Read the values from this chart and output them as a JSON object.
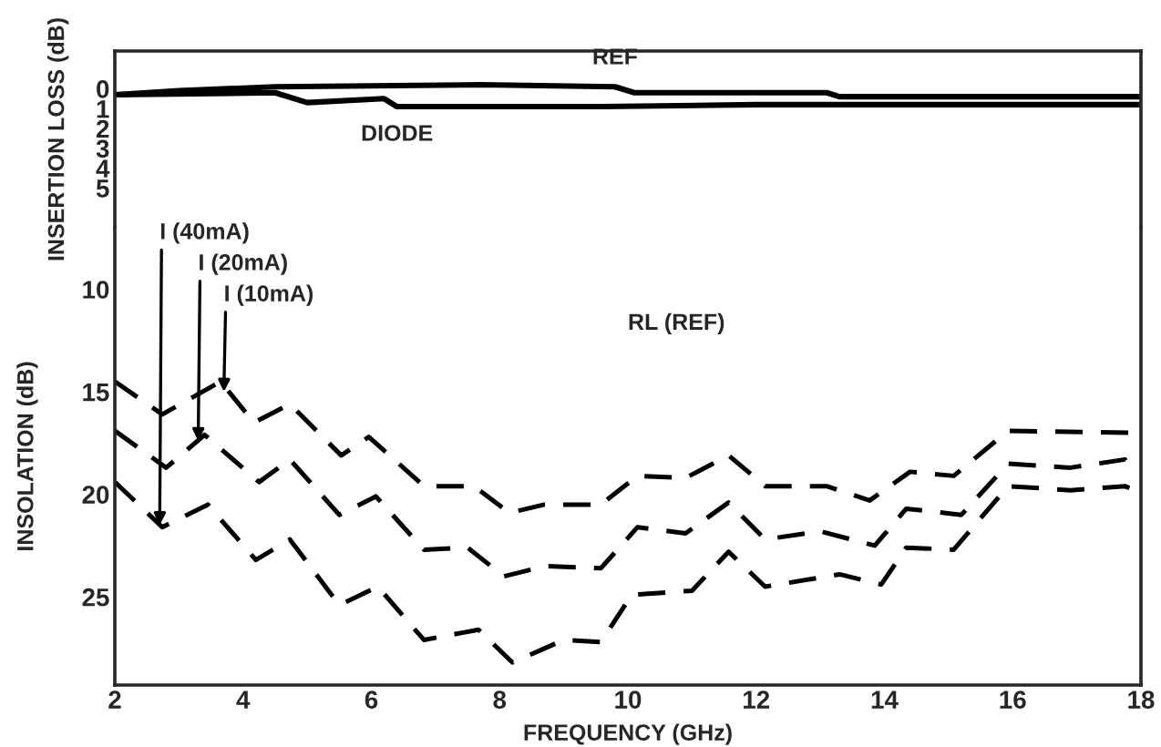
{
  "chart_data": [
    {
      "type": "line",
      "ylabel": "INSERTION LOSS (dB)",
      "xlim": [
        2,
        18
      ],
      "ylim": [
        7,
        -1.9
      ],
      "yticks": [
        0,
        1,
        2,
        3,
        4,
        5
      ],
      "tick_labels": "y",
      "line_style": "solid",
      "marker": "none",
      "grid": false,
      "legend": false,
      "series": [
        {
          "name": "REF",
          "color": "#000000",
          "x": [
            2,
            3,
            4.5,
            7.7,
            9.8,
            10.1,
            13.1,
            13.3,
            18
          ],
          "values": [
            0.3,
            0.1,
            -0.1,
            -0.2,
            -0.1,
            0.2,
            0.2,
            0.4,
            0.4
          ]
        },
        {
          "name": "DIODE",
          "color": "#000000",
          "x": [
            2,
            4.5,
            5.0,
            6.2,
            6.4,
            9.6,
            12,
            15,
            18
          ],
          "values": [
            0.3,
            0.2,
            0.7,
            0.5,
            0.9,
            0.9,
            0.8,
            0.8,
            0.8
          ]
        }
      ]
    },
    {
      "type": "line",
      "xlabel": "FREQUENCY (GHz)",
      "ylabel": "INSOLATION (dB)",
      "xlim": [
        2,
        18
      ],
      "xticks": [
        2,
        4,
        6,
        8,
        10,
        12,
        14,
        16,
        18
      ],
      "ylim": [
        29.3,
        7
      ],
      "yticks": [
        10,
        15,
        20,
        25
      ],
      "line_style": "dashed",
      "marker": "none",
      "grid": false,
      "legend": false,
      "annotations": [
        {
          "text": "I (40mA)",
          "x": 2.7,
          "y": 21.5
        },
        {
          "text": "I (20mA)",
          "x": 3.3,
          "y": 17.4
        },
        {
          "text": "I (10mA)",
          "x": 3.7,
          "y": 15.0
        },
        "RL (REF)"
      ],
      "series": [
        {
          "color": "#000000",
          "x": [
            2.0,
            2.74,
            3.65,
            4.17,
            4.73,
            5.53,
            5.96,
            6.82,
            7.6,
            8.15,
            8.7,
            9.58,
            10.15,
            10.9,
            11.57,
            12.14,
            13.1,
            13.77,
            14.4,
            15.08,
            15.93,
            17.84,
            17.93
          ],
          "values": [
            14.5,
            16.1,
            14.5,
            16.5,
            15.6,
            18.1,
            17.2,
            19.6,
            19.6,
            20.9,
            20.5,
            20.5,
            19.1,
            19.2,
            18.1,
            19.6,
            19.6,
            20.3,
            18.9,
            19.1,
            16.9,
            17.0,
            17.3
          ]
        },
        {
          "color": "#000000",
          "x": [
            2.0,
            2.8,
            3.4,
            4.25,
            4.73,
            5.5,
            6.07,
            6.82,
            7.5,
            8.07,
            8.7,
            9.58,
            10.15,
            10.9,
            11.57,
            12.14,
            13.0,
            13.85,
            14.34,
            15.2,
            15.93,
            16.9,
            17.75,
            17.84
          ],
          "values": [
            16.9,
            18.7,
            17.1,
            19.4,
            18.3,
            21.0,
            20.1,
            22.7,
            22.6,
            24.0,
            23.5,
            23.6,
            21.6,
            21.9,
            20.4,
            22.2,
            21.8,
            22.5,
            20.7,
            21.0,
            18.5,
            18.7,
            18.3,
            18.7
          ]
        },
        {
          "color": "#000000",
          "x": [
            2.0,
            2.74,
            3.45,
            4.2,
            4.73,
            5.5,
            6.1,
            6.82,
            7.67,
            8.2,
            9.0,
            9.58,
            10.06,
            11.0,
            11.57,
            12.14,
            13.3,
            13.95,
            14.34,
            15.08,
            15.93,
            16.9,
            17.75,
            17.9
          ],
          "values": [
            19.4,
            21.6,
            20.5,
            23.2,
            22.2,
            25.4,
            24.5,
            27.1,
            26.6,
            28.2,
            27.1,
            27.2,
            24.9,
            24.7,
            22.8,
            24.5,
            23.9,
            24.4,
            22.6,
            22.7,
            19.6,
            19.8,
            19.6,
            19.8
          ]
        }
      ]
    }
  ]
}
